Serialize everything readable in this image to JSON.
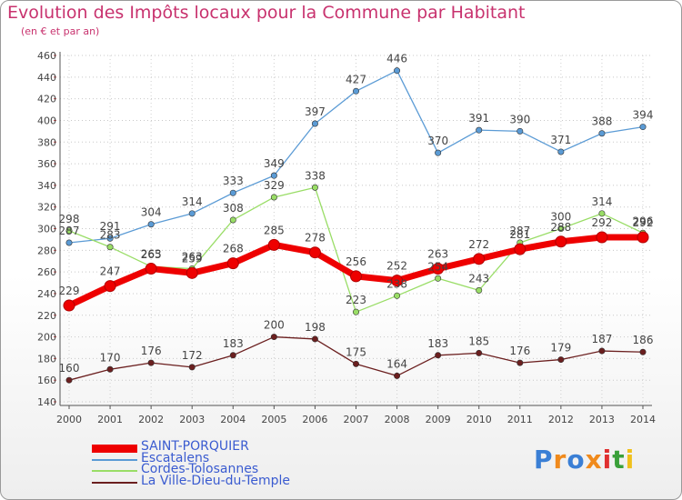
{
  "header": {
    "title": "Evolution des Impôts locaux pour la Commune par Habitant",
    "subtitle": "(en € et par an)"
  },
  "colors": {
    "title": "#c8326e",
    "legend_text": "#3a5bd0",
    "axis": "#555555"
  },
  "logo": {
    "text": "Proxiti"
  },
  "chart_data": {
    "type": "line",
    "x": [
      2000,
      2001,
      2002,
      2003,
      2004,
      2005,
      2006,
      2007,
      2008,
      2009,
      2010,
      2011,
      2012,
      2013,
      2014
    ],
    "ylim": [
      140,
      460
    ],
    "yticks": [
      140,
      160,
      180,
      200,
      220,
      240,
      260,
      280,
      300,
      320,
      340,
      360,
      380,
      400,
      420,
      440,
      460
    ],
    "title": "Evolution des Impôts locaux pour la Commune par Habitant",
    "grid": "horizontal dotted",
    "legend_placement": "bottom-left",
    "series": [
      {
        "name": "SAINT-PORQUIER",
        "color": "#ee0000",
        "style": "thick",
        "values": [
          229,
          247,
          263,
          259,
          268,
          285,
          278,
          256,
          252,
          263,
          272,
          281,
          288,
          292,
          292
        ]
      },
      {
        "name": "Escatalens",
        "color": "#5b9bd5",
        "style": "thin",
        "values": [
          287,
          291,
          304,
          314,
          333,
          349,
          397,
          427,
          446,
          370,
          391,
          390,
          371,
          388,
          394
        ]
      },
      {
        "name": "Cordes-Tolosannes",
        "color": "#99dd66",
        "style": "thin",
        "values": [
          298,
          283,
          265,
          263,
          308,
          329,
          338,
          223,
          238,
          254,
          243,
          287,
          300,
          314,
          296
        ]
      },
      {
        "name": "La Ville-Dieu-du-Temple",
        "color": "#6b1f1f",
        "style": "thin",
        "values": [
          160,
          170,
          176,
          172,
          183,
          200,
          198,
          175,
          164,
          183,
          185,
          176,
          179,
          187,
          186
        ]
      }
    ]
  }
}
